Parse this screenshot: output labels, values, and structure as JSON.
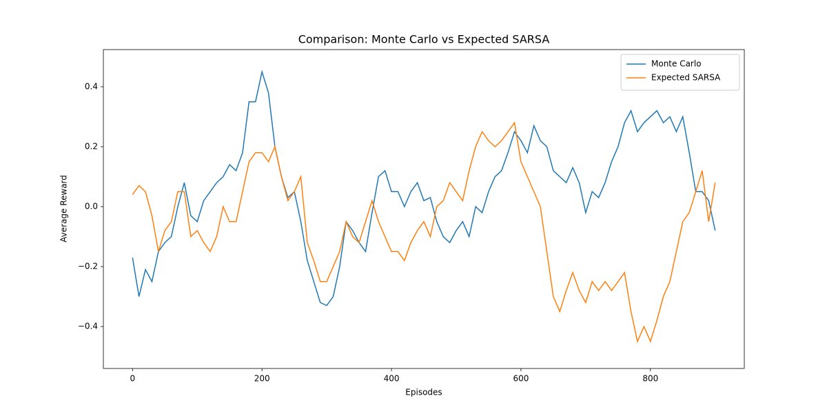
{
  "chart_data": {
    "type": "line",
    "title": "Comparison: Monte Carlo vs Expected SARSA",
    "x_label": "Episodes",
    "y_label": "Average Reward",
    "x": [
      0,
      10,
      20,
      30,
      40,
      50,
      60,
      70,
      80,
      90,
      100,
      110,
      120,
      130,
      140,
      150,
      160,
      170,
      180,
      190,
      200,
      210,
      220,
      230,
      240,
      250,
      260,
      270,
      280,
      290,
      300,
      310,
      320,
      330,
      340,
      350,
      360,
      370,
      380,
      390,
      400,
      410,
      420,
      430,
      440,
      450,
      460,
      470,
      480,
      490,
      500,
      510,
      520,
      530,
      540,
      550,
      560,
      570,
      580,
      590,
      600,
      610,
      620,
      630,
      640,
      650,
      660,
      670,
      680,
      690,
      700,
      710,
      720,
      730,
      740,
      750,
      760,
      770,
      780,
      790,
      800,
      810,
      820,
      830,
      840,
      850,
      860,
      870,
      880,
      890,
      900
    ],
    "series": [
      {
        "name": "Monte Carlo",
        "color": "#1f77b4",
        "values": [
          -0.17,
          -0.3,
          -0.21,
          -0.25,
          -0.15,
          -0.12,
          -0.1,
          0.0,
          0.08,
          -0.03,
          -0.05,
          0.02,
          0.05,
          0.08,
          0.1,
          0.14,
          0.12,
          0.18,
          0.35,
          0.35,
          0.45,
          0.38,
          0.2,
          0.1,
          0.03,
          0.05,
          -0.05,
          -0.18,
          -0.25,
          -0.32,
          -0.33,
          -0.3,
          -0.2,
          -0.05,
          -0.08,
          -0.12,
          -0.15,
          -0.02,
          0.1,
          0.12,
          0.05,
          0.05,
          0.0,
          0.05,
          0.08,
          0.02,
          0.03,
          -0.05,
          -0.1,
          -0.12,
          -0.08,
          -0.05,
          -0.1,
          0.0,
          -0.02,
          0.05,
          0.1,
          0.12,
          0.18,
          0.25,
          0.22,
          0.18,
          0.27,
          0.22,
          0.2,
          0.12,
          0.1,
          0.08,
          0.13,
          0.08,
          -0.02,
          0.05,
          0.03,
          0.08,
          0.15,
          0.2,
          0.28,
          0.32,
          0.25,
          0.28,
          0.3,
          0.32,
          0.28,
          0.3,
          0.25,
          0.3,
          0.18,
          0.05,
          0.05,
          0.02,
          -0.08
        ]
      },
      {
        "name": "Expected SARSA",
        "color": "#ff7f0e",
        "values": [
          0.04,
          0.07,
          0.05,
          -0.03,
          -0.15,
          -0.08,
          -0.05,
          0.05,
          0.05,
          -0.1,
          -0.08,
          -0.12,
          -0.15,
          -0.1,
          0.0,
          -0.05,
          -0.05,
          0.05,
          0.15,
          0.18,
          0.18,
          0.15,
          0.2,
          0.1,
          0.02,
          0.05,
          0.1,
          -0.12,
          -0.18,
          -0.25,
          -0.25,
          -0.2,
          -0.15,
          -0.05,
          -0.1,
          -0.12,
          -0.05,
          0.02,
          -0.05,
          -0.1,
          -0.15,
          -0.15,
          -0.18,
          -0.12,
          -0.08,
          -0.05,
          -0.1,
          0.0,
          0.02,
          0.08,
          0.05,
          0.02,
          0.12,
          0.2,
          0.25,
          0.22,
          0.2,
          0.22,
          0.25,
          0.28,
          0.15,
          0.1,
          0.05,
          0.0,
          -0.15,
          -0.3,
          -0.35,
          -0.28,
          -0.22,
          -0.28,
          -0.32,
          -0.25,
          -0.28,
          -0.25,
          -0.28,
          -0.25,
          -0.22,
          -0.35,
          -0.45,
          -0.4,
          -0.45,
          -0.38,
          -0.3,
          -0.25,
          -0.15,
          -0.05,
          -0.02,
          0.05,
          0.12,
          -0.05,
          0.08
        ]
      }
    ],
    "xlim": [
      -45,
      945
    ],
    "xticks": [
      0,
      200,
      400,
      600,
      800
    ],
    "ylim": [
      -0.54,
      0.524
    ],
    "yticks": [
      {
        "value": -0.4,
        "label": "−0.4"
      },
      {
        "value": -0.2,
        "label": "−0.2"
      },
      {
        "value": 0,
        "label": "0.0"
      },
      0.2,
      0.4
    ],
    "grid": false,
    "legend": "upper right"
  }
}
